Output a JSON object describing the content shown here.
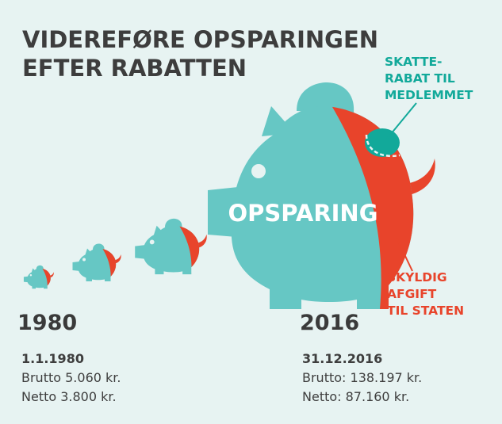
{
  "title": {
    "line1": "VIDEREFØRE OPSPARINGEN",
    "line2": "EFTER RABATTEN"
  },
  "colors": {
    "background": "#e7f3f2",
    "pig": "#66c7c4",
    "debt": "#e8442b",
    "tax_rebate": "#12a99a",
    "text": "#3d3d3d"
  },
  "labels": {
    "big_pig": "OPSPARING",
    "tax_rebate": [
      "SKATTE-",
      "RABAT TIL",
      "MEDLEMMET"
    ],
    "debt": [
      "SKYLDIG",
      "AFGIFT",
      "TIL STATEN"
    ]
  },
  "years": {
    "left": "1980",
    "right": "2016"
  },
  "left_info": {
    "date": "1.1.1980",
    "gross": "Brutto 5.060 kr.",
    "net": "Netto 3.800 kr."
  },
  "right_info": {
    "date": "31.12.2016",
    "gross": "Brutto: 138.197 kr.",
    "net": "Netto: 87.160 kr."
  },
  "icons": [
    "piggy-bank-icon"
  ]
}
